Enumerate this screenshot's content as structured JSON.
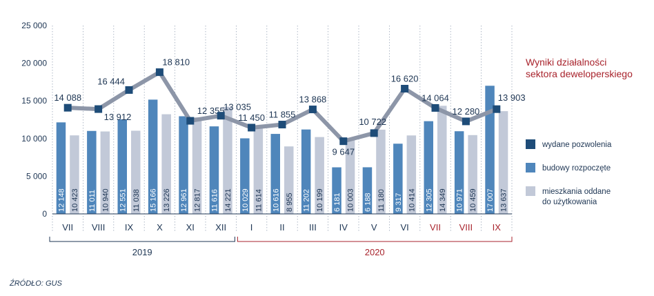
{
  "chart_data": {
    "type": "bar",
    "title_lines": [
      "Wyniki działalności",
      "sektora deweloperskiego"
    ],
    "ylim": [
      0,
      25000
    ],
    "yticks": [
      "25 000",
      "20 000",
      "15 000",
      "10 000",
      "5 000",
      "0"
    ],
    "ytick_values": [
      25000,
      20000,
      15000,
      10000,
      5000,
      0
    ],
    "grid": "vertical dotted",
    "legend_position": "right",
    "categories": [
      "VII",
      "VIII",
      "IX",
      "X",
      "XI",
      "XII",
      "I",
      "II",
      "III",
      "IV",
      "V",
      "VI",
      "VII",
      "VIII",
      "IX"
    ],
    "category_highlight": [
      false,
      false,
      false,
      false,
      false,
      false,
      false,
      false,
      false,
      false,
      false,
      false,
      true,
      true,
      true
    ],
    "years": [
      {
        "label": "2019",
        "from": 0,
        "to": 5
      },
      {
        "label": "2020",
        "from": 6,
        "to": 14
      }
    ],
    "series": [
      {
        "name": "wydane pozwolenia",
        "kind": "line",
        "color": "#1e4c78",
        "line_color": "#8d96a8",
        "values": [
          14088,
          13912,
          16444,
          18810,
          12355,
          13035,
          11450,
          11855,
          13868,
          9647,
          10722,
          16620,
          14064,
          12280,
          13903
        ],
        "labels": [
          "14 088",
          "13 912",
          "16 444",
          "18 810",
          "12 355",
          "13 035",
          "11 450",
          "11 855",
          "13 868",
          "9 647",
          "10 722",
          "16 620",
          "14 064",
          "12 280",
          "13 903"
        ]
      },
      {
        "name": "budowy rozpoczęte",
        "kind": "bar",
        "color": "#4f86bb",
        "values": [
          12148,
          11011,
          12551,
          15166,
          12961,
          11616,
          10029,
          10616,
          11202,
          6181,
          6188,
          9317,
          12305,
          10971,
          17007
        ],
        "labels": [
          "12 148",
          "11 011",
          "12 551",
          "15 166",
          "12 961",
          "11 616",
          "10 029",
          "10 616",
          "11 202",
          "6 181",
          "6 188",
          "9 317",
          "12 305",
          "10 971",
          "17 007"
        ]
      },
      {
        "name": "mieszkania oddane do użytkowania",
        "kind": "bar",
        "color": "#c2c9d8",
        "name_lines": [
          "mieszkania oddane",
          "do użytkowania"
        ],
        "values": [
          10423,
          10940,
          11038,
          13226,
          12817,
          14221,
          11614,
          8955,
          10199,
          10003,
          11180,
          10414,
          14349,
          10459,
          13637
        ],
        "labels": [
          "10 423",
          "10 940",
          "11 038",
          "13 226",
          "12 817",
          "14 221",
          "11 614",
          "8 955",
          "10 199",
          "10 003",
          "11 180",
          "10 414",
          "14 349",
          "10 459",
          "13 637"
        ]
      }
    ],
    "colors": {
      "axis": "#1d3553",
      "year_2019": "#1d3553",
      "year_2020": "#a8232c",
      "title": "#a8232c"
    }
  },
  "source": "ŹRÓDŁO: GUS"
}
